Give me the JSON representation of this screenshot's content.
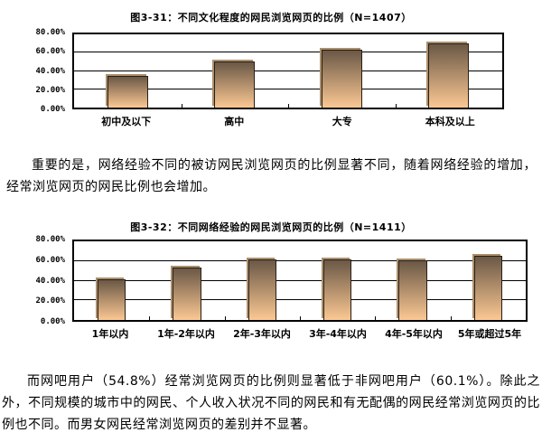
{
  "page": {
    "background_color": "#ffffff",
    "text_color": "#000000"
  },
  "chart_data": [
    {
      "type": "bar",
      "title": "图3-31：不同文化程度的网民浏览网页的比例（N=1407）",
      "categories": [
        "初中及以下",
        "高中",
        "大专",
        "本科及以上"
      ],
      "values": [
        35,
        50,
        63.5,
        70
      ],
      "xlabel": "",
      "ylabel": "",
      "ylim": [
        0,
        80
      ],
      "ytick_step": 20,
      "ytick_labels": [
        "0.00%",
        "20.00%",
        "40.00%",
        "60.00%",
        "80.00%"
      ],
      "grid": true,
      "legend": "none",
      "bar_top_color": "#6a5846",
      "bar_bottom_color": "#fcc893",
      "bar_border_color": "#2a1f15",
      "bar_shadow_color": "#ab8f6d"
    },
    {
      "type": "bar",
      "title": "图3-32：不同网络经验的网民浏览网页的比例（N=1411）",
      "categories": [
        "1年以内",
        "1年-2年以内",
        "2年-3年以内",
        "3年-4年以内",
        "4年-5年以内",
        "5年或超过5年"
      ],
      "values": [
        41,
        53,
        61.5,
        61.5,
        61,
        65.5
      ],
      "xlabel": "",
      "ylabel": "",
      "ylim": [
        0,
        80
      ],
      "ytick_step": 20,
      "ytick_labels": [
        "0.00%",
        "20.00%",
        "40.00%",
        "60.00%",
        "80.00%"
      ],
      "grid": true,
      "legend": "none",
      "bar_top_color": "#6a5846",
      "bar_bottom_color": "#fcc893",
      "bar_border_color": "#2a1f15",
      "bar_shadow_color": "#ab8f6d"
    }
  ],
  "paragraphs": {
    "middle": "重要的是，网络经验不同的被访网民浏览网页的比例显著不同，随着网络经验的增加，经常浏览网页的网民比例也会增加。",
    "bottom": "而网吧用户（54.8%）经常浏览网页的比例则显著低于非网吧用户（60.1%）。除此之外，不同规模的城市中的网民、个人收入状况不同的网民和有无配偶的网民经常浏览网页的比例也不同。而男女网民经常浏览网页的差别并不显著。"
  }
}
